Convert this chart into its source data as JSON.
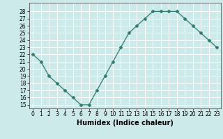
{
  "x": [
    0,
    1,
    2,
    3,
    4,
    5,
    6,
    7,
    8,
    9,
    10,
    11,
    12,
    13,
    14,
    15,
    16,
    17,
    18,
    19,
    20,
    21,
    22,
    23
  ],
  "y": [
    22,
    21,
    19,
    18,
    17,
    16,
    15,
    15,
    17,
    19,
    21,
    23,
    25,
    26,
    27,
    28,
    28,
    28,
    28,
    27,
    26,
    25,
    24,
    23
  ],
  "line_color": "#2e7d6e",
  "marker": "D",
  "marker_size": 2.5,
  "bg_color": "#cceaea",
  "grid_color": "#ffffff",
  "xlabel": "Humidex (Indice chaleur)",
  "xlim": [
    -0.5,
    23.5
  ],
  "ylim": [
    14.5,
    29.2
  ],
  "yticks": [
    15,
    16,
    17,
    18,
    19,
    20,
    21,
    22,
    23,
    24,
    25,
    26,
    27,
    28
  ],
  "xticks": [
    0,
    1,
    2,
    3,
    4,
    5,
    6,
    7,
    8,
    9,
    10,
    11,
    12,
    13,
    14,
    15,
    16,
    17,
    18,
    19,
    20,
    21,
    22,
    23
  ],
  "tick_fontsize": 5.5,
  "xlabel_fontsize": 7
}
